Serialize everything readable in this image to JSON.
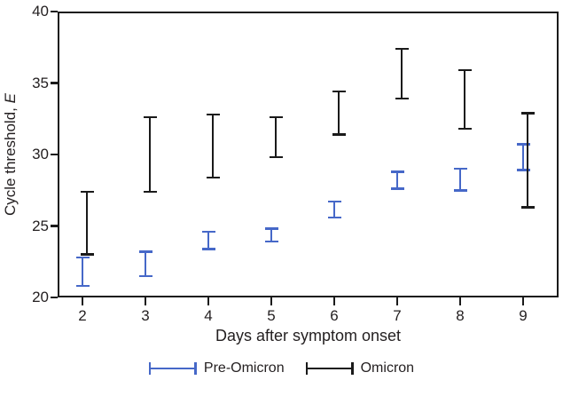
{
  "chart_data": {
    "type": "errorbar",
    "title": "",
    "xlabel": "Days after symptom onset",
    "ylabel": "Cycle threshold, E",
    "ylabel_text": "Cycle threshold, ",
    "ylabel_var": "E",
    "x": [
      2,
      3,
      4,
      5,
      6,
      7,
      8,
      9
    ],
    "xtick_labels": [
      "2",
      "3",
      "4",
      "5",
      "6",
      "7",
      "8",
      "9"
    ],
    "ylim": [
      20,
      40
    ],
    "yticks": [
      20,
      25,
      30,
      35,
      40
    ],
    "ytick_labels": [
      "20",
      "25",
      "30",
      "35",
      "40"
    ],
    "grid": false,
    "legend_position": "bottom-center",
    "frame": "full-box",
    "axis_color": "#1a1a1a",
    "text_color": "#231f20",
    "series": [
      {
        "name": "Pre-Omicron",
        "color": "#4668C8",
        "ranges": [
          [
            20.8,
            22.8
          ],
          [
            21.5,
            23.2
          ],
          [
            23.4,
            24.6
          ],
          [
            23.9,
            24.8
          ],
          [
            25.6,
            26.7
          ],
          [
            27.6,
            28.8
          ],
          [
            27.5,
            29.0
          ],
          [
            28.9,
            30.7
          ]
        ]
      },
      {
        "name": "Omicron",
        "color": "#1a1a1a",
        "ranges": [
          [
            23.0,
            27.4
          ],
          [
            27.4,
            32.6
          ],
          [
            28.4,
            32.8
          ],
          [
            29.8,
            32.6
          ],
          [
            31.4,
            34.4
          ],
          [
            33.9,
            37.4
          ],
          [
            31.8,
            35.9
          ],
          [
            26.3,
            32.9
          ]
        ]
      }
    ]
  }
}
